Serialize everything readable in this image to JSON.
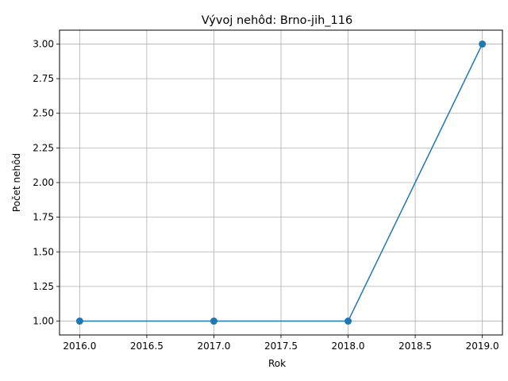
{
  "chart_data": {
    "type": "line",
    "title": "Vývoj nehôd: Brno-jih_116",
    "xlabel": "Rok",
    "ylabel": "Počet nehôd",
    "xlim": [
      2015.85,
      2019.15
    ],
    "ylim": [
      0.9,
      3.1
    ],
    "xticks": [
      2016.0,
      2016.5,
      2017.0,
      2017.5,
      2018.0,
      2018.5,
      2019.0
    ],
    "xtick_labels": [
      "2016.0",
      "2016.5",
      "2017.0",
      "2017.5",
      "2018.0",
      "2018.5",
      "2019.0"
    ],
    "yticks": [
      1.0,
      1.25,
      1.5,
      1.75,
      2.0,
      2.25,
      2.5,
      2.75,
      3.0
    ],
    "ytick_labels": [
      "1.00",
      "1.25",
      "1.50",
      "1.75",
      "2.00",
      "2.25",
      "2.50",
      "2.75",
      "3.00"
    ],
    "grid": true,
    "series": [
      {
        "x": [
          2016,
          2017,
          2018,
          2019
        ],
        "values": [
          1,
          1,
          1,
          3
        ],
        "color": "#1f77b4",
        "marker": "circle"
      }
    ]
  }
}
